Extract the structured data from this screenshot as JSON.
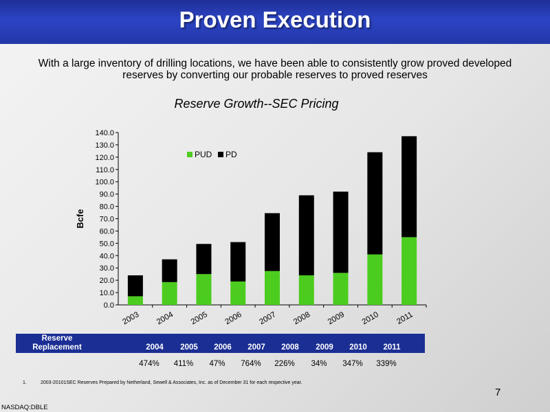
{
  "slide": {
    "title": "Proven Execution",
    "subtitle": "With a large inventory of drilling locations, we have been able to consistently grow proved developed reserves by converting our probable reserves to proved reserves",
    "page_number": "7",
    "ticker": "NASDAQ:DBLE",
    "footnote_number": "1.",
    "footnote_text": "2003-20101SEC Reserves Prepared by Netherland, Sewell & Associates, Inc. as of December 31 for each respective year."
  },
  "chart_data": {
    "type": "bar",
    "stacked": true,
    "title": "Reserve Growth--SEC Pricing",
    "ylabel": "Bcfe",
    "xlabel": "",
    "ylim": [
      0,
      140
    ],
    "ytick_step": 10,
    "categories": [
      "2003",
      "2004",
      "2005",
      "2006",
      "2007",
      "2008",
      "2009",
      "2010",
      "2011"
    ],
    "series": [
      {
        "name": "PUD",
        "color": "#4ccc1e",
        "values": [
          7,
          18.5,
          25,
          19,
          27.5,
          24,
          26,
          41,
          55
        ]
      },
      {
        "name": "PD",
        "color": "#000000",
        "values": [
          17,
          18.5,
          24.5,
          32,
          47,
          65,
          66,
          83,
          82
        ]
      }
    ],
    "legend_position": "top-left",
    "grid": false
  },
  "reserve_replacement": {
    "label": "Reserve Replacement",
    "years": [
      "2004",
      "2005",
      "2006",
      "2007",
      "2008",
      "2009",
      "2010",
      "2011"
    ],
    "values": [
      "474%",
      "411%",
      "47%",
      "764%",
      "226%",
      "34%",
      "347%",
      "339%"
    ],
    "header_color": "#1b2e93"
  }
}
